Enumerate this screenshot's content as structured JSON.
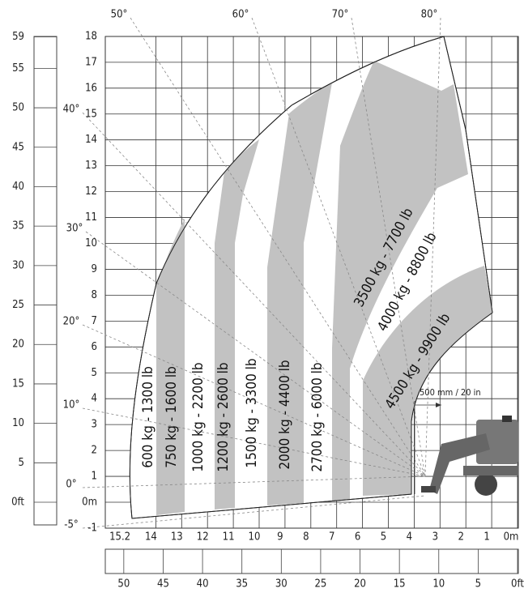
{
  "angle_labels": [
    "50°",
    "60°",
    "70°",
    "80°",
    "40°",
    "30°",
    "20°",
    "10°",
    "0°",
    "-5°"
  ],
  "height_m": [
    "18",
    "17",
    "16",
    "15",
    "14",
    "13",
    "12",
    "11",
    "10",
    "9",
    "8",
    "7",
    "6",
    "5",
    "4",
    "3",
    "2",
    "1",
    "0m",
    "-1"
  ],
  "height_ft": [
    "59",
    "55",
    "50",
    "45",
    "40",
    "35",
    "30",
    "25",
    "20",
    "15",
    "10",
    "5",
    "0ft"
  ],
  "reach_m": [
    "15.2",
    "14",
    "13",
    "12",
    "11",
    "10",
    "9",
    "8",
    "7",
    "6",
    "5",
    "4",
    "3",
    "2",
    "1",
    "0m"
  ],
  "reach_ft": [
    "50",
    "45",
    "40",
    "35",
    "30",
    "25",
    "20",
    "15",
    "10",
    "5",
    "0ft"
  ],
  "loads": [
    "600 kg - 1300 lb",
    "750 kg - 1600 lb",
    "1000 kg - 2200 lb",
    "1200 kg - 2600 lb",
    "1500 kg - 3300 lb",
    "2000 kg - 4400 lb",
    "2700 kg - 6000 lb",
    "3500 kg - 7700 lb",
    "4000 kg - 8800 lb",
    "4500 kg - 9900 lb"
  ],
  "dimension": "500 mm / 20 in"
}
